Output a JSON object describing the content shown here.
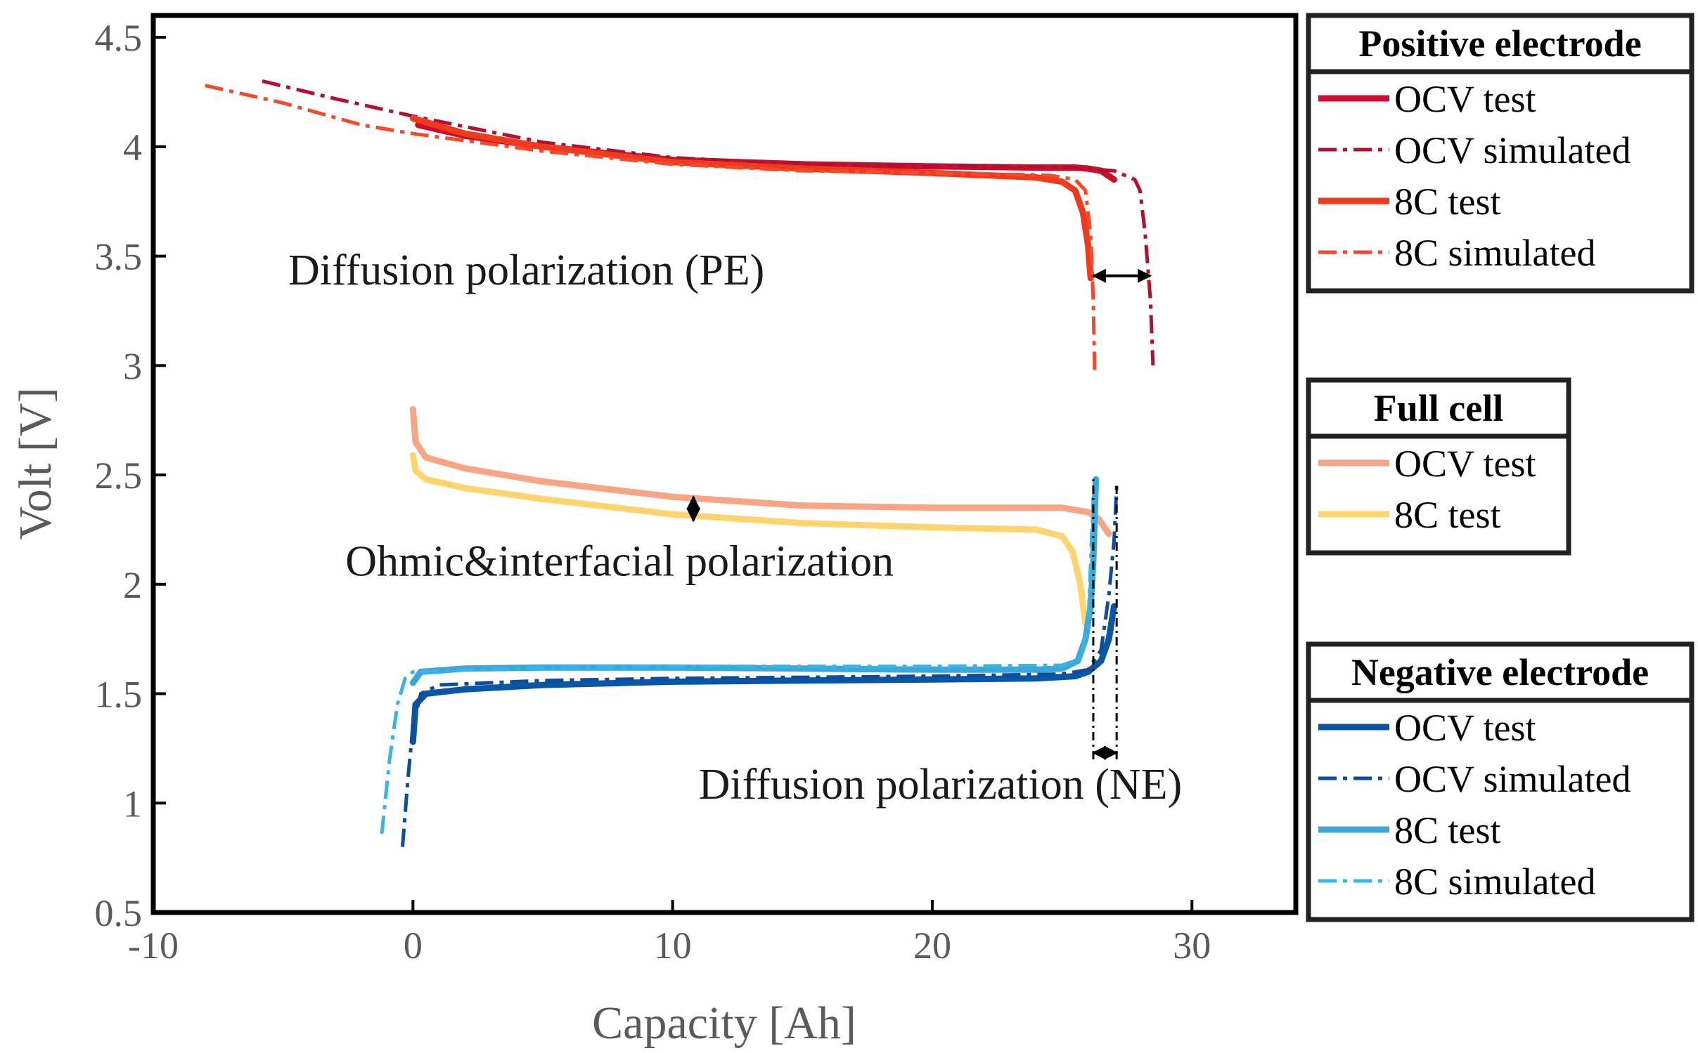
{
  "chart_data": {
    "type": "line",
    "title": "",
    "xlabel": "Capacity [Ah]",
    "ylabel": "Volt [V]",
    "xlim": [
      -10,
      34
    ],
    "ylim": [
      0.5,
      4.6
    ],
    "xticks": [
      -10,
      0,
      10,
      20,
      30
    ],
    "yticks": [
      0.5,
      1,
      1.5,
      2,
      2.5,
      3,
      3.5,
      4,
      4.5
    ],
    "xtick_labels": [
      "-10",
      "0",
      "10",
      "20",
      "30"
    ],
    "ytick_labels": [
      "0.5",
      "1",
      "1.5",
      "2",
      "2.5",
      "3",
      "3.5",
      "4",
      "4.5"
    ],
    "grid": false,
    "series": [
      {
        "name": "PE OCV test",
        "group": "positive",
        "color": "#C8102E",
        "dash": "solid",
        "width": 9,
        "points": [
          [
            0.2,
            4.1
          ],
          [
            2,
            4.05
          ],
          [
            5,
            4.0
          ],
          [
            10,
            3.94
          ],
          [
            15,
            3.92
          ],
          [
            20,
            3.91
          ],
          [
            24,
            3.905
          ],
          [
            25.5,
            3.905
          ],
          [
            26,
            3.9
          ],
          [
            26.5,
            3.89
          ],
          [
            27,
            3.85
          ]
        ]
      },
      {
        "name": "PE OCV simulated",
        "group": "positive",
        "color": "#B40F2E",
        "dash": "dashdot",
        "width": 5,
        "points": [
          [
            -5.8,
            4.3
          ],
          [
            -3,
            4.22
          ],
          [
            0,
            4.14
          ],
          [
            5,
            4.02
          ],
          [
            10,
            3.95
          ],
          [
            15,
            3.92
          ],
          [
            20,
            3.91
          ],
          [
            25,
            3.91
          ],
          [
            27,
            3.89
          ],
          [
            27.8,
            3.85
          ],
          [
            28,
            3.8
          ],
          [
            28.2,
            3.6
          ],
          [
            28.4,
            3.3
          ],
          [
            28.5,
            3.0
          ]
        ]
      },
      {
        "name": "PE 8C test",
        "group": "positive",
        "color": "#F03A1E",
        "dash": "solid",
        "width": 9,
        "points": [
          [
            0,
            4.13
          ],
          [
            2,
            4.06
          ],
          [
            5,
            4.0
          ],
          [
            10,
            3.93
          ],
          [
            15,
            3.9
          ],
          [
            20,
            3.88
          ],
          [
            24,
            3.86
          ],
          [
            25,
            3.84
          ],
          [
            25.5,
            3.8
          ],
          [
            25.8,
            3.7
          ],
          [
            26,
            3.55
          ],
          [
            26.1,
            3.4
          ]
        ]
      },
      {
        "name": "PE 8C simulated",
        "group": "positive",
        "color": "#F24A2A",
        "dash": "dashdot",
        "width": 5,
        "points": [
          [
            -8,
            4.28
          ],
          [
            -5,
            4.2
          ],
          [
            -2,
            4.1
          ],
          [
            0,
            4.06
          ],
          [
            5,
            3.98
          ],
          [
            10,
            3.92
          ],
          [
            15,
            3.89
          ],
          [
            20,
            3.88
          ],
          [
            24.5,
            3.87
          ],
          [
            25.5,
            3.85
          ],
          [
            25.9,
            3.8
          ],
          [
            26.1,
            3.6
          ],
          [
            26.2,
            3.3
          ],
          [
            26.25,
            2.98
          ]
        ]
      },
      {
        "name": "Full cell OCV test",
        "group": "full",
        "color": "#F7A585",
        "dash": "solid",
        "width": 9,
        "points": [
          [
            0,
            2.8
          ],
          [
            0.1,
            2.65
          ],
          [
            0.5,
            2.58
          ],
          [
            2,
            2.53
          ],
          [
            5,
            2.47
          ],
          [
            10,
            2.4
          ],
          [
            15,
            2.36
          ],
          [
            20,
            2.35
          ],
          [
            25,
            2.35
          ],
          [
            26,
            2.33
          ],
          [
            26.4,
            2.3
          ],
          [
            26.8,
            2.23
          ]
        ]
      },
      {
        "name": "Full cell 8C test",
        "group": "full",
        "color": "#FDD46E",
        "dash": "solid",
        "width": 9,
        "points": [
          [
            0,
            2.59
          ],
          [
            0.1,
            2.52
          ],
          [
            0.5,
            2.48
          ],
          [
            2,
            2.44
          ],
          [
            5,
            2.39
          ],
          [
            10,
            2.32
          ],
          [
            15,
            2.28
          ],
          [
            20,
            2.26
          ],
          [
            24,
            2.25
          ],
          [
            25,
            2.22
          ],
          [
            25.4,
            2.15
          ],
          [
            25.7,
            2.0
          ],
          [
            25.9,
            1.82
          ]
        ]
      },
      {
        "name": "NE OCV test",
        "group": "negative",
        "color": "#0B55A5",
        "dash": "solid",
        "width": 9,
        "points": [
          [
            0,
            1.28
          ],
          [
            0.1,
            1.45
          ],
          [
            0.5,
            1.5
          ],
          [
            2,
            1.52
          ],
          [
            5,
            1.54
          ],
          [
            10,
            1.555
          ],
          [
            15,
            1.56
          ],
          [
            20,
            1.565
          ],
          [
            24,
            1.57
          ],
          [
            25.5,
            1.58
          ],
          [
            26,
            1.6
          ],
          [
            26.5,
            1.65
          ],
          [
            26.8,
            1.75
          ],
          [
            27,
            1.9
          ]
        ]
      },
      {
        "name": "NE OCV simulated",
        "group": "negative",
        "color": "#0B4D9E",
        "dash": "dashdot",
        "width": 5,
        "points": [
          [
            -0.4,
            0.8
          ],
          [
            -0.2,
            1.1
          ],
          [
            0,
            1.35
          ],
          [
            0.3,
            1.5
          ],
          [
            1,
            1.54
          ],
          [
            5,
            1.56
          ],
          [
            10,
            1.57
          ],
          [
            20,
            1.58
          ],
          [
            25,
            1.59
          ],
          [
            26,
            1.61
          ],
          [
            26.5,
            1.7
          ],
          [
            26.8,
            1.95
          ],
          [
            27,
            2.2
          ],
          [
            27.1,
            2.45
          ]
        ]
      },
      {
        "name": "NE 8C test",
        "group": "negative",
        "color": "#3AA8DA",
        "dash": "solid",
        "width": 9,
        "points": [
          [
            0,
            1.55
          ],
          [
            0.3,
            1.6
          ],
          [
            2,
            1.615
          ],
          [
            5,
            1.62
          ],
          [
            10,
            1.62
          ],
          [
            15,
            1.615
          ],
          [
            20,
            1.61
          ],
          [
            24,
            1.61
          ],
          [
            25,
            1.615
          ],
          [
            25.6,
            1.65
          ],
          [
            25.9,
            1.75
          ],
          [
            26.1,
            1.9
          ],
          [
            26.2,
            2.1
          ],
          [
            26.3,
            2.48
          ]
        ]
      },
      {
        "name": "NE 8C simulated",
        "group": "negative",
        "color": "#3AB4E4",
        "dash": "dashdot",
        "width": 5,
        "points": [
          [
            -1.2,
            0.86
          ],
          [
            -0.9,
            1.2
          ],
          [
            -0.6,
            1.45
          ],
          [
            -0.3,
            1.57
          ],
          [
            0,
            1.6
          ],
          [
            5,
            1.62
          ],
          [
            10,
            1.625
          ],
          [
            15,
            1.625
          ],
          [
            20,
            1.625
          ],
          [
            25,
            1.63
          ],
          [
            25.7,
            1.66
          ],
          [
            26,
            1.8
          ],
          [
            26.1,
            2.1
          ],
          [
            26.2,
            2.4
          ]
        ]
      }
    ],
    "annotations": [
      {
        "id": "pe",
        "text": "Diffusion polarization (PE)",
        "x": -4.8,
        "y": 3.37,
        "arrow": {
          "orientation": "horizontal",
          "from": [
            26.2,
            3.41
          ],
          "to": [
            28.4,
            3.41
          ]
        }
      },
      {
        "id": "ohmic",
        "text": "Ohmic&interfacial polarization",
        "x": -2.6,
        "y": 2.04,
        "arrow": {
          "orientation": "vertical",
          "from": [
            10.8,
            2.4
          ],
          "to": [
            10.8,
            2.29
          ]
        }
      },
      {
        "id": "ne",
        "text": "Diffusion polarization (NE)",
        "x": 11,
        "y": 1.02,
        "arrow": {
          "orientation": "horizontal",
          "from": [
            26.2,
            1.23
          ],
          "to": [
            27.1,
            1.23
          ]
        },
        "guides": [
          [
            26.2,
            1.2,
            2.48
          ],
          [
            27.1,
            1.2,
            2.45
          ]
        ]
      }
    ],
    "legend": {
      "placement": "right",
      "groups": [
        {
          "id": "positive",
          "title": "Positive electrode",
          "entries": [
            {
              "label": "OCV test",
              "color": "#C8102E",
              "dash": "solid"
            },
            {
              "label": "OCV simulated",
              "color": "#B40F2E",
              "dash": "dashdot"
            },
            {
              "label": "8C test",
              "color": "#F03A1E",
              "dash": "solid"
            },
            {
              "label": "8C simulated",
              "color": "#F24A2A",
              "dash": "dashdot"
            }
          ]
        },
        {
          "id": "full",
          "title": "Full cell",
          "entries": [
            {
              "label": "OCV test",
              "color": "#F7A585",
              "dash": "solid"
            },
            {
              "label": "8C test",
              "color": "#FDD46E",
              "dash": "solid"
            }
          ]
        },
        {
          "id": "negative",
          "title": "Negative electrode",
          "entries": [
            {
              "label": "OCV test",
              "color": "#0B55A5",
              "dash": "solid"
            },
            {
              "label": "OCV simulated",
              "color": "#0B4D9E",
              "dash": "dashdot"
            },
            {
              "label": "8C test",
              "color": "#3AA8DA",
              "dash": "solid"
            },
            {
              "label": "8C simulated",
              "color": "#3AB4E4",
              "dash": "dashdot"
            }
          ]
        }
      ]
    }
  }
}
